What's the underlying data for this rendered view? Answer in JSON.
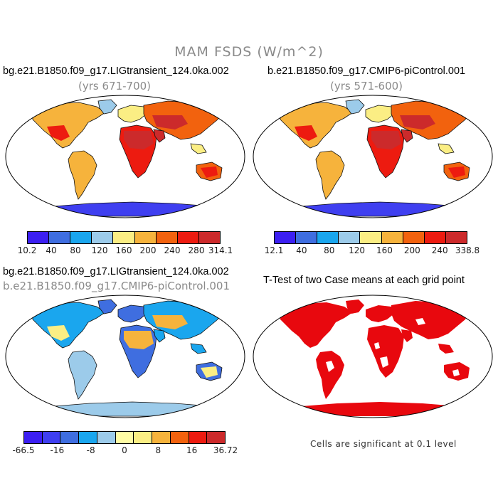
{
  "title": "MAM FSDS (W/m^2)",
  "panels": [
    {
      "id": "case1",
      "title": "bg.e21.B1850.f09_g17.LIGtransient_124.0ka.002",
      "subtitle": "(yrs 671-700)",
      "colorbar": {
        "colors": [
          "#3c1ff2",
          "#3f6ee0",
          "#1aa6ee",
          "#9ccbea",
          "#fbee84",
          "#f6b33c",
          "#f2620e",
          "#ed1b10",
          "#cc2a2b"
        ],
        "tick_labels": [
          "10.2",
          "40",
          "80",
          "120",
          "160",
          "200",
          "240",
          "280",
          "314.1"
        ],
        "min": 10.2,
        "max": 314.1
      }
    },
    {
      "id": "case2",
      "title": "b.e21.B1850.f09_g17.CMIP6-piControl.001",
      "subtitle": "(yrs 571-600)",
      "colorbar": {
        "colors": [
          "#3c1ff2",
          "#3f6ee0",
          "#1aa6ee",
          "#9ccbea",
          "#fbee84",
          "#f6b33c",
          "#f2620e",
          "#ed1b10",
          "#cc2a2b"
        ],
        "tick_labels": [
          "12.1",
          "40",
          "80",
          "120",
          "160",
          "200",
          "240",
          "338.8"
        ],
        "min": 12.1,
        "max": 338.8
      }
    },
    {
      "id": "diff",
      "title": "bg.e21.B1850.f09_g17.LIGtransient_124.0ka.002",
      "subtitle": "b.e21.B1850.f09_g17.CMIP6-piControl.001",
      "colorbar": {
        "colors": [
          "#3c1ff2",
          "#3f3ff0",
          "#3f6ee0",
          "#1aa6ee",
          "#9ccbea",
          "#fffca4",
          "#fbee84",
          "#f6b33c",
          "#f2620e",
          "#ed1b10",
          "#cc2a2b"
        ],
        "tick_labels": [
          "-66.5",
          "-16",
          "-8",
          "0",
          "8",
          "16",
          "36.72"
        ],
        "min": -66.5,
        "max": 36.72
      }
    },
    {
      "id": "ttest",
      "title": "T-Test of two Case means at each grid point",
      "note": "Cells are significant at 0.1 level",
      "color": "#e8080e"
    }
  ]
}
